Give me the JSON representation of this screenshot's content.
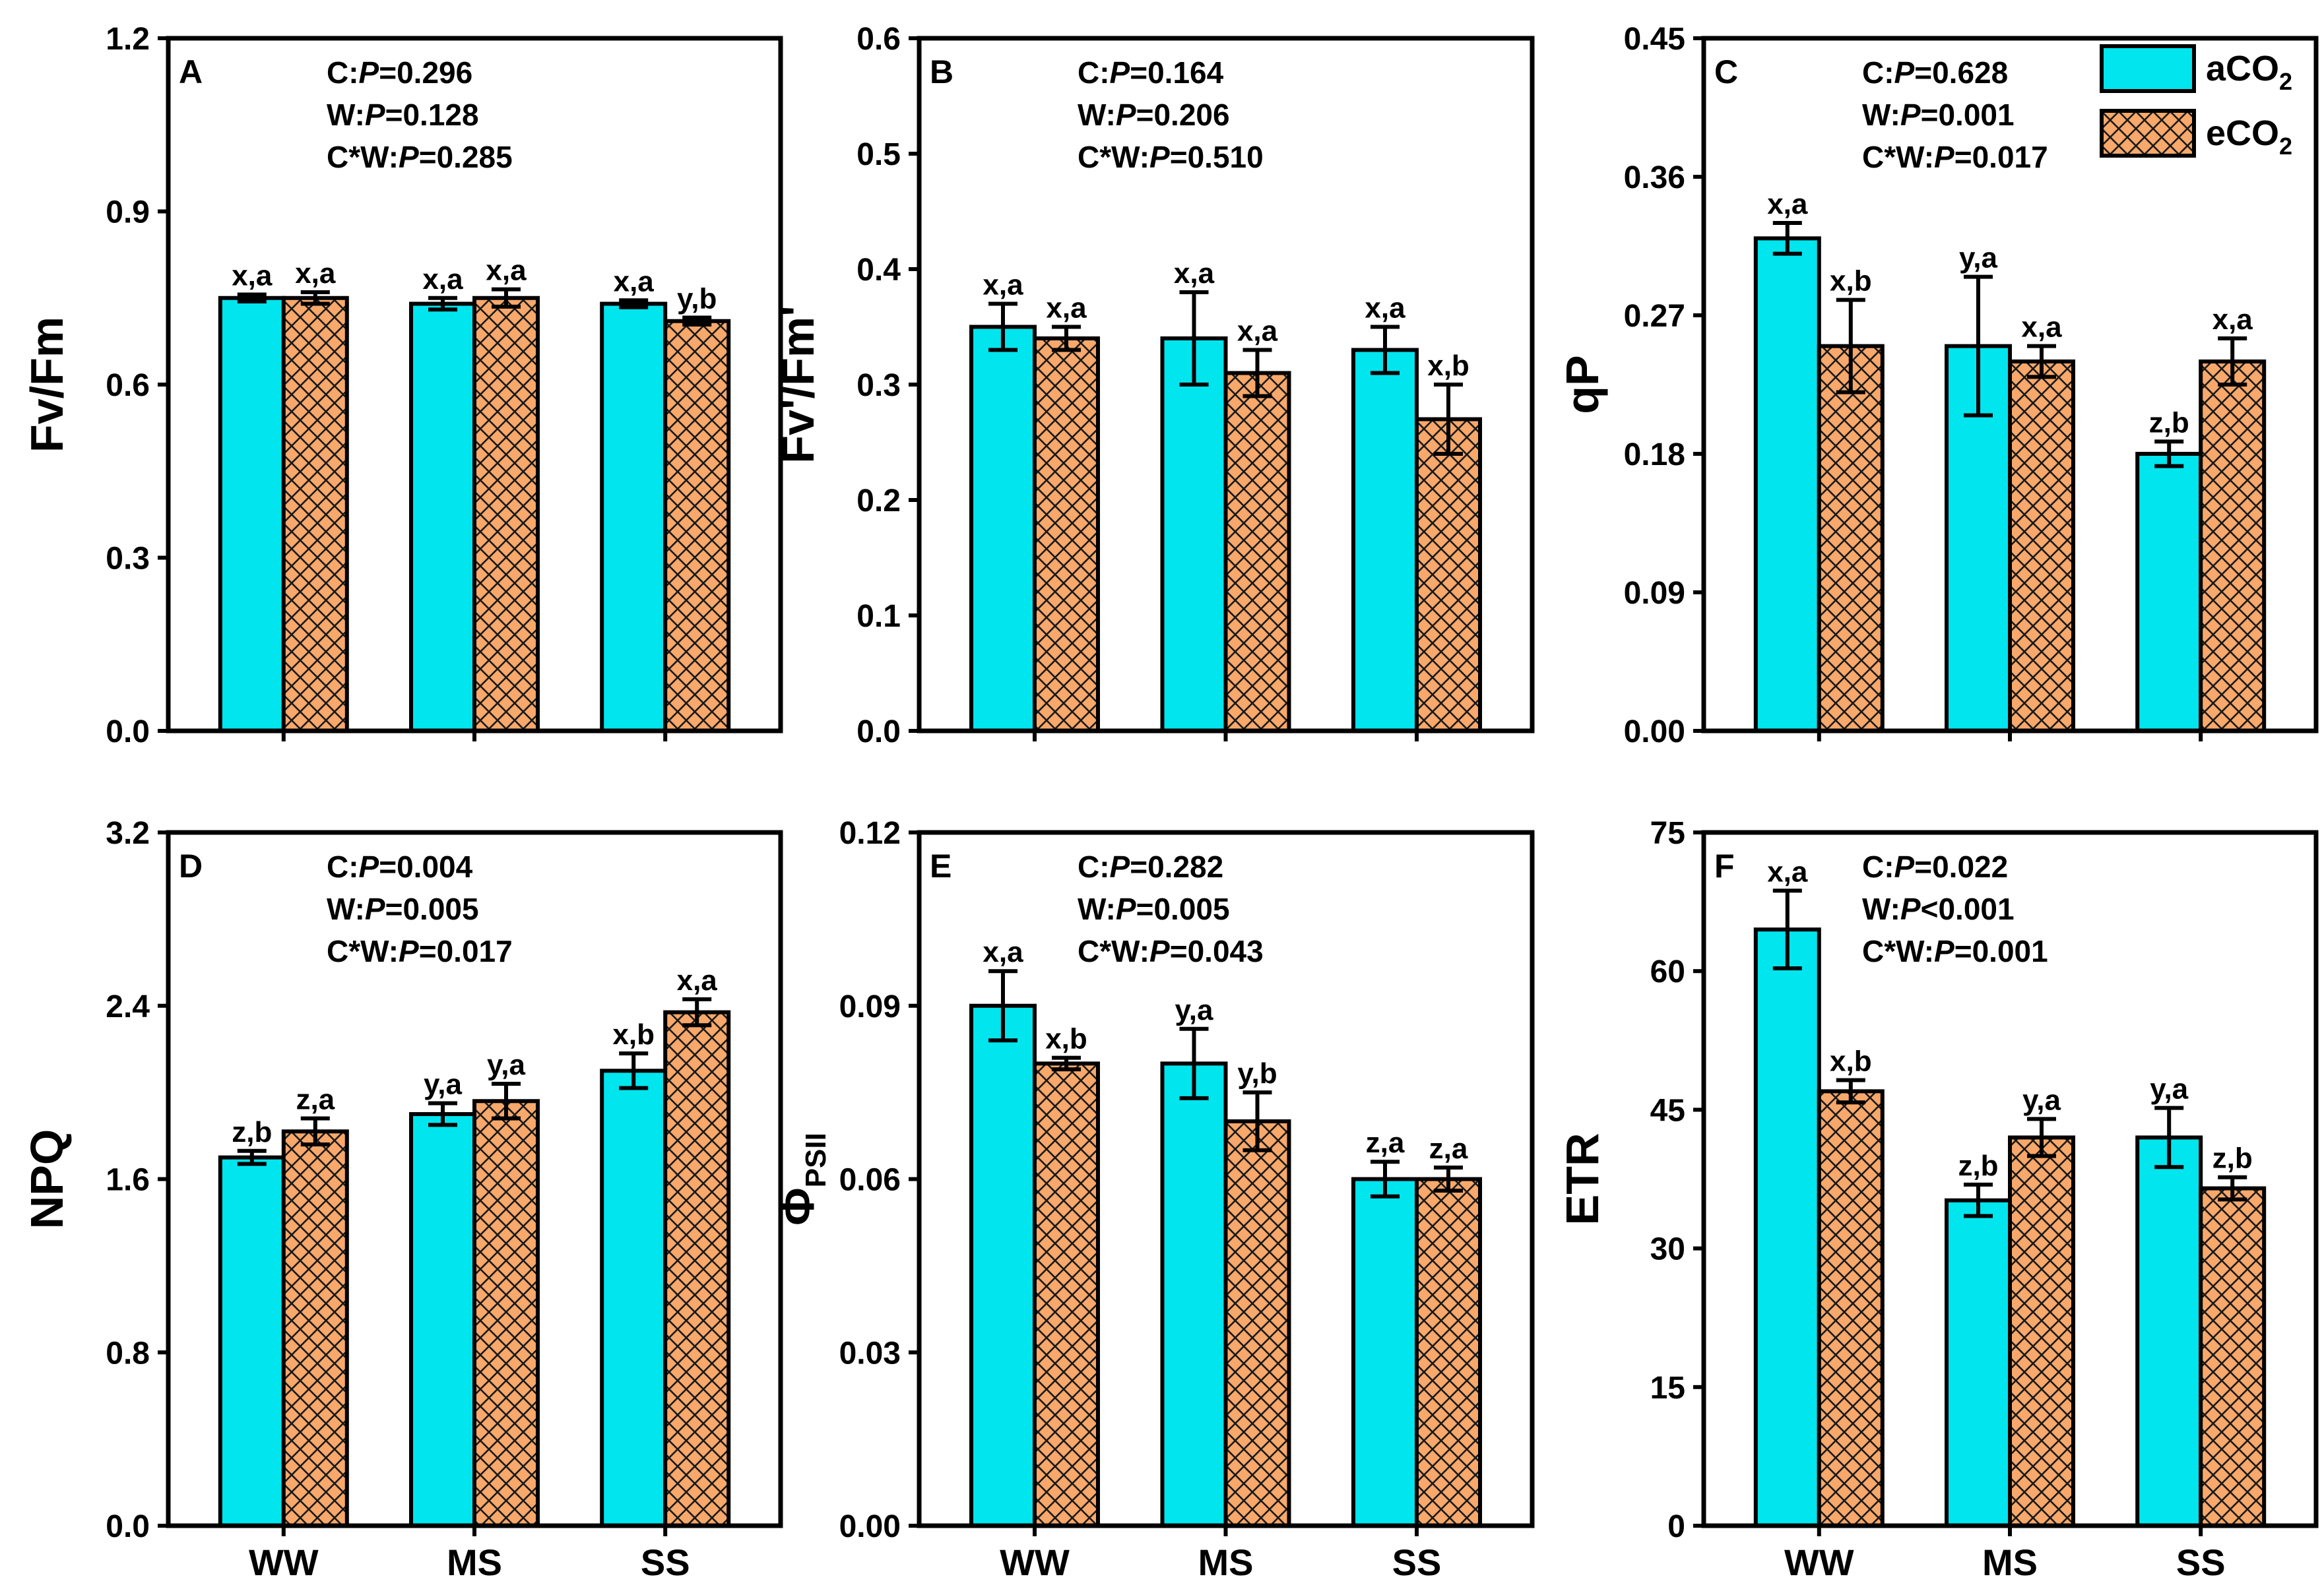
{
  "colors": {
    "aco2": "#00E5EE",
    "eco2": "#F7A86A",
    "eco2_hatch": "#1a1a1a",
    "axis": "#000000"
  },
  "legend": [
    {
      "series": "aco2",
      "label_main": "aCO",
      "label_sub": "2"
    },
    {
      "series": "eco2",
      "label_main": "eCO",
      "label_sub": "2"
    }
  ],
  "chart_data": [
    {
      "type": "bar",
      "panel": "A",
      "ylabel": {
        "main": "Fv/Fm",
        "sub": ""
      },
      "ylim": [
        0,
        1.2
      ],
      "yticks": [
        "0.0",
        "0.3",
        "0.6",
        "0.9",
        "1.2"
      ],
      "categories": [
        "WW",
        "MS",
        "SS"
      ],
      "show_xlabels": false,
      "stats": [
        {
          "pre": "C:",
          "ital": "P",
          "post": "=0.296"
        },
        {
          "pre": "W:",
          "ital": "P",
          "post": "=0.128"
        },
        {
          "pre": "C*W:",
          "ital": "P",
          "post": "=0.285"
        }
      ],
      "series": [
        {
          "name": "aCO2",
          "values": [
            0.75,
            0.74,
            0.74
          ],
          "errors": [
            0.006,
            0.01,
            0.006
          ],
          "labels": [
            "x,a",
            "x,a",
            "x,a"
          ]
        },
        {
          "name": "eCO2",
          "values": [
            0.75,
            0.75,
            0.71
          ],
          "errors": [
            0.01,
            0.015,
            0.006
          ],
          "labels": [
            "x,a",
            "x,a",
            "y,b"
          ]
        }
      ]
    },
    {
      "type": "bar",
      "panel": "B",
      "ylabel": {
        "main": "Fv'/Fm'",
        "sub": ""
      },
      "ylim": [
        0,
        0.6
      ],
      "yticks": [
        "0.0",
        "0.1",
        "0.2",
        "0.3",
        "0.4",
        "0.5",
        "0.6"
      ],
      "categories": [
        "WW",
        "MS",
        "SS"
      ],
      "show_xlabels": false,
      "stats": [
        {
          "pre": "C:",
          "ital": "P",
          "post": "=0.164"
        },
        {
          "pre": "W:",
          "ital": "P",
          "post": "=0.206"
        },
        {
          "pre": "C*W:",
          "ital": "P",
          "post": "=0.510"
        }
      ],
      "series": [
        {
          "name": "aCO2",
          "values": [
            0.35,
            0.34,
            0.33
          ],
          "errors": [
            0.02,
            0.04,
            0.02
          ],
          "labels": [
            "x,a",
            "x,a",
            "x,a"
          ]
        },
        {
          "name": "eCO2",
          "values": [
            0.34,
            0.31,
            0.27
          ],
          "errors": [
            0.01,
            0.02,
            0.03
          ],
          "labels": [
            "x,a",
            "x,a",
            "x,b"
          ]
        }
      ]
    },
    {
      "type": "bar",
      "panel": "C",
      "ylabel": {
        "main": "qP",
        "sub": ""
      },
      "ylim": [
        0,
        0.45
      ],
      "yticks": [
        "0.00",
        "0.09",
        "0.18",
        "0.27",
        "0.36",
        "0.45"
      ],
      "categories": [
        "WW",
        "MS",
        "SS"
      ],
      "show_xlabels": false,
      "stats": [
        {
          "pre": "C:",
          "ital": "P",
          "post": "=0.628"
        },
        {
          "pre": "W:",
          "ital": "P",
          "post": "=0.001"
        },
        {
          "pre": "C*W:",
          "ital": "P",
          "post": "=0.017"
        }
      ],
      "series": [
        {
          "name": "aCO2",
          "values": [
            0.32,
            0.25,
            0.18
          ],
          "errors": [
            0.01,
            0.045,
            0.008
          ],
          "labels": [
            "x,a",
            "y,a",
            "z,b"
          ]
        },
        {
          "name": "eCO2",
          "values": [
            0.25,
            0.24,
            0.24
          ],
          "errors": [
            0.03,
            0.01,
            0.015
          ],
          "labels": [
            "x,b",
            "x,a",
            "x,a"
          ]
        }
      ]
    },
    {
      "type": "bar",
      "panel": "D",
      "ylabel": {
        "main": "NPQ",
        "sub": ""
      },
      "ylim": [
        0,
        3.2
      ],
      "yticks": [
        "0.0",
        "0.8",
        "1.6",
        "2.4",
        "3.2"
      ],
      "categories": [
        "WW",
        "MS",
        "SS"
      ],
      "show_xlabels": true,
      "stats": [
        {
          "pre": "C:",
          "ital": "P",
          "post": "=0.004"
        },
        {
          "pre": "W:",
          "ital": "P",
          "post": "=0.005"
        },
        {
          "pre": "C*W:",
          "ital": "P",
          "post": "=0.017"
        }
      ],
      "series": [
        {
          "name": "aCO2",
          "values": [
            1.7,
            1.9,
            2.1
          ],
          "errors": [
            0.03,
            0.05,
            0.08
          ],
          "labels": [
            "z,b",
            "y,a",
            "x,b"
          ]
        },
        {
          "name": "eCO2",
          "values": [
            1.82,
            1.96,
            2.37
          ],
          "errors": [
            0.06,
            0.08,
            0.06
          ],
          "labels": [
            "z,a",
            "y,a",
            "x,a"
          ]
        }
      ]
    },
    {
      "type": "bar",
      "panel": "E",
      "ylabel": {
        "main": "Φ",
        "sub": "PSII"
      },
      "ylim": [
        0,
        0.12
      ],
      "yticks": [
        "0.00",
        "0.03",
        "0.06",
        "0.09",
        "0.12"
      ],
      "categories": [
        "WW",
        "MS",
        "SS"
      ],
      "show_xlabels": true,
      "stats": [
        {
          "pre": "C:",
          "ital": "P",
          "post": "=0.282"
        },
        {
          "pre": "W:",
          "ital": "P",
          "post": "=0.005"
        },
        {
          "pre": "C*W:",
          "ital": "P",
          "post": "=0.043"
        }
      ],
      "series": [
        {
          "name": "aCO2",
          "values": [
            0.09,
            0.08,
            0.06
          ],
          "errors": [
            0.006,
            0.006,
            0.003
          ],
          "labels": [
            "x,a",
            "y,a",
            "z,a"
          ]
        },
        {
          "name": "eCO2",
          "values": [
            0.08,
            0.07,
            0.06
          ],
          "errors": [
            0.001,
            0.005,
            0.002
          ],
          "labels": [
            "x,b",
            "y,b",
            "z,a"
          ]
        }
      ]
    },
    {
      "type": "bar",
      "panel": "F",
      "ylabel": {
        "main": "ETR",
        "sub": ""
      },
      "ylim": [
        0,
        75
      ],
      "yticks": [
        "0",
        "15",
        "30",
        "45",
        "60",
        "75"
      ],
      "categories": [
        "WW",
        "MS",
        "SS"
      ],
      "show_xlabels": true,
      "stats": [
        {
          "pre": "C:",
          "ital": "P",
          "post": "=0.022"
        },
        {
          "pre": "W:",
          "ital": "P",
          "post": "<0.001"
        },
        {
          "pre": "C*W:",
          "ital": "P",
          "post": "=0.001"
        }
      ],
      "series": [
        {
          "name": "aCO2",
          "values": [
            64.5,
            35.2,
            42.0
          ],
          "errors": [
            4.2,
            1.7,
            3.2
          ],
          "labels": [
            "x,a",
            "z,b",
            "y,a"
          ]
        },
        {
          "name": "eCO2",
          "values": [
            47.0,
            42.0,
            36.5
          ],
          "errors": [
            1.2,
            2.0,
            1.2
          ],
          "labels": [
            "x,b",
            "y,a",
            "z,b"
          ]
        }
      ]
    }
  ]
}
